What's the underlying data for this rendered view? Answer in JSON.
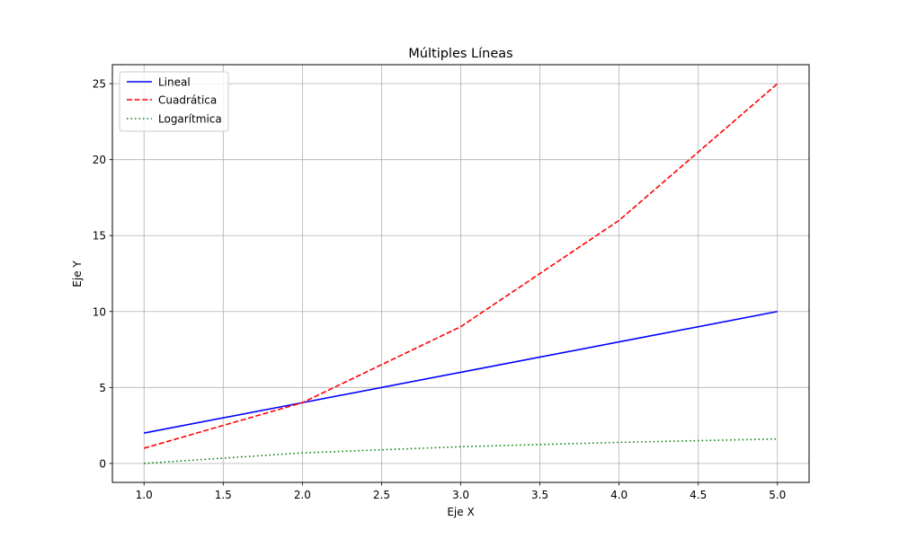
{
  "chart_data": {
    "type": "line",
    "title": "Múltiples Líneas",
    "xlabel": "Eje X",
    "ylabel": "Eje Y",
    "x": [
      1,
      2,
      3,
      4,
      5
    ],
    "xlim": [
      0.8,
      5.2
    ],
    "ylim": [
      -1.25,
      26.25
    ],
    "xticks": [
      1.0,
      1.5,
      2.0,
      2.5,
      3.0,
      3.5,
      4.0,
      4.5,
      5.0
    ],
    "xtick_labels": [
      "1.0",
      "1.5",
      "2.0",
      "2.5",
      "3.0",
      "3.5",
      "4.0",
      "4.5",
      "5.0"
    ],
    "yticks": [
      0,
      5,
      10,
      15,
      20,
      25
    ],
    "ytick_labels": [
      "0",
      "5",
      "10",
      "15",
      "20",
      "25"
    ],
    "grid": true,
    "legend_position": "top-left",
    "series": [
      {
        "name": "Lineal",
        "values": [
          2,
          4,
          6,
          8,
          10
        ],
        "color": "#0000ff",
        "style": "solid"
      },
      {
        "name": "Cuadrática",
        "values": [
          1,
          4,
          9,
          16,
          25
        ],
        "color": "#ff0000",
        "style": "dashed"
      },
      {
        "name": "Logarítmica",
        "values": [
          0,
          0.693,
          1.099,
          1.386,
          1.609
        ],
        "color": "#008000",
        "style": "dotted"
      }
    ]
  }
}
